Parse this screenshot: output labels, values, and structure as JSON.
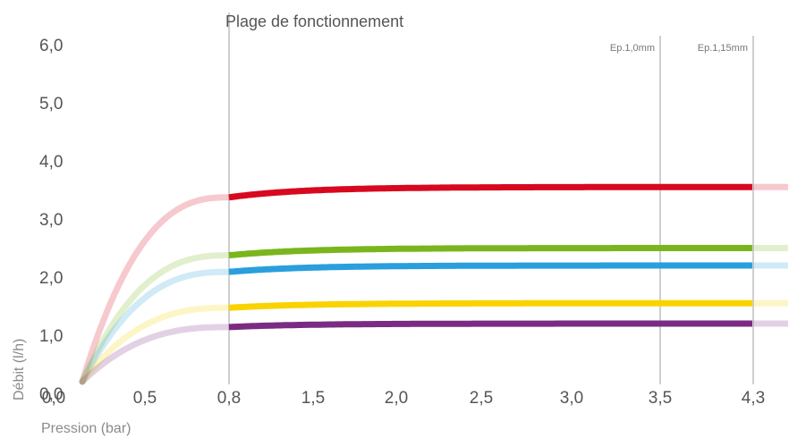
{
  "chart_data": {
    "type": "line",
    "title": "Plage de fonctionnement",
    "xlabel": "Pression (bar)",
    "ylabel": "Débit (l/h)",
    "ylim": [
      0,
      6
    ],
    "x_ticks": [
      "0,0",
      "0,5",
      "0,8",
      "1,5",
      "2,0",
      "2,5",
      "3,0",
      "3,5",
      "4,3"
    ],
    "y_ticks": [
      "0,0",
      "1,0",
      "2,0",
      "3,0",
      "4,0",
      "5,0",
      "6,0"
    ],
    "operating_range": {
      "from": "0,8",
      "to": "4,3"
    },
    "annotations": [
      {
        "text": "Ep.1,0mm",
        "at": "3,5"
      },
      {
        "text": "Ep.1,15mm",
        "at": "4,3"
      }
    ],
    "grid": false,
    "series": [
      {
        "color": "#d8081f",
        "plateau": 3.55
      },
      {
        "color": "#7ab51d",
        "plateau": 2.5
      },
      {
        "color": "#2a9fdc",
        "plateau": 2.2
      },
      {
        "color": "#f9d300",
        "plateau": 1.55
      },
      {
        "color": "#7a2c83",
        "plateau": 1.2
      }
    ]
  }
}
